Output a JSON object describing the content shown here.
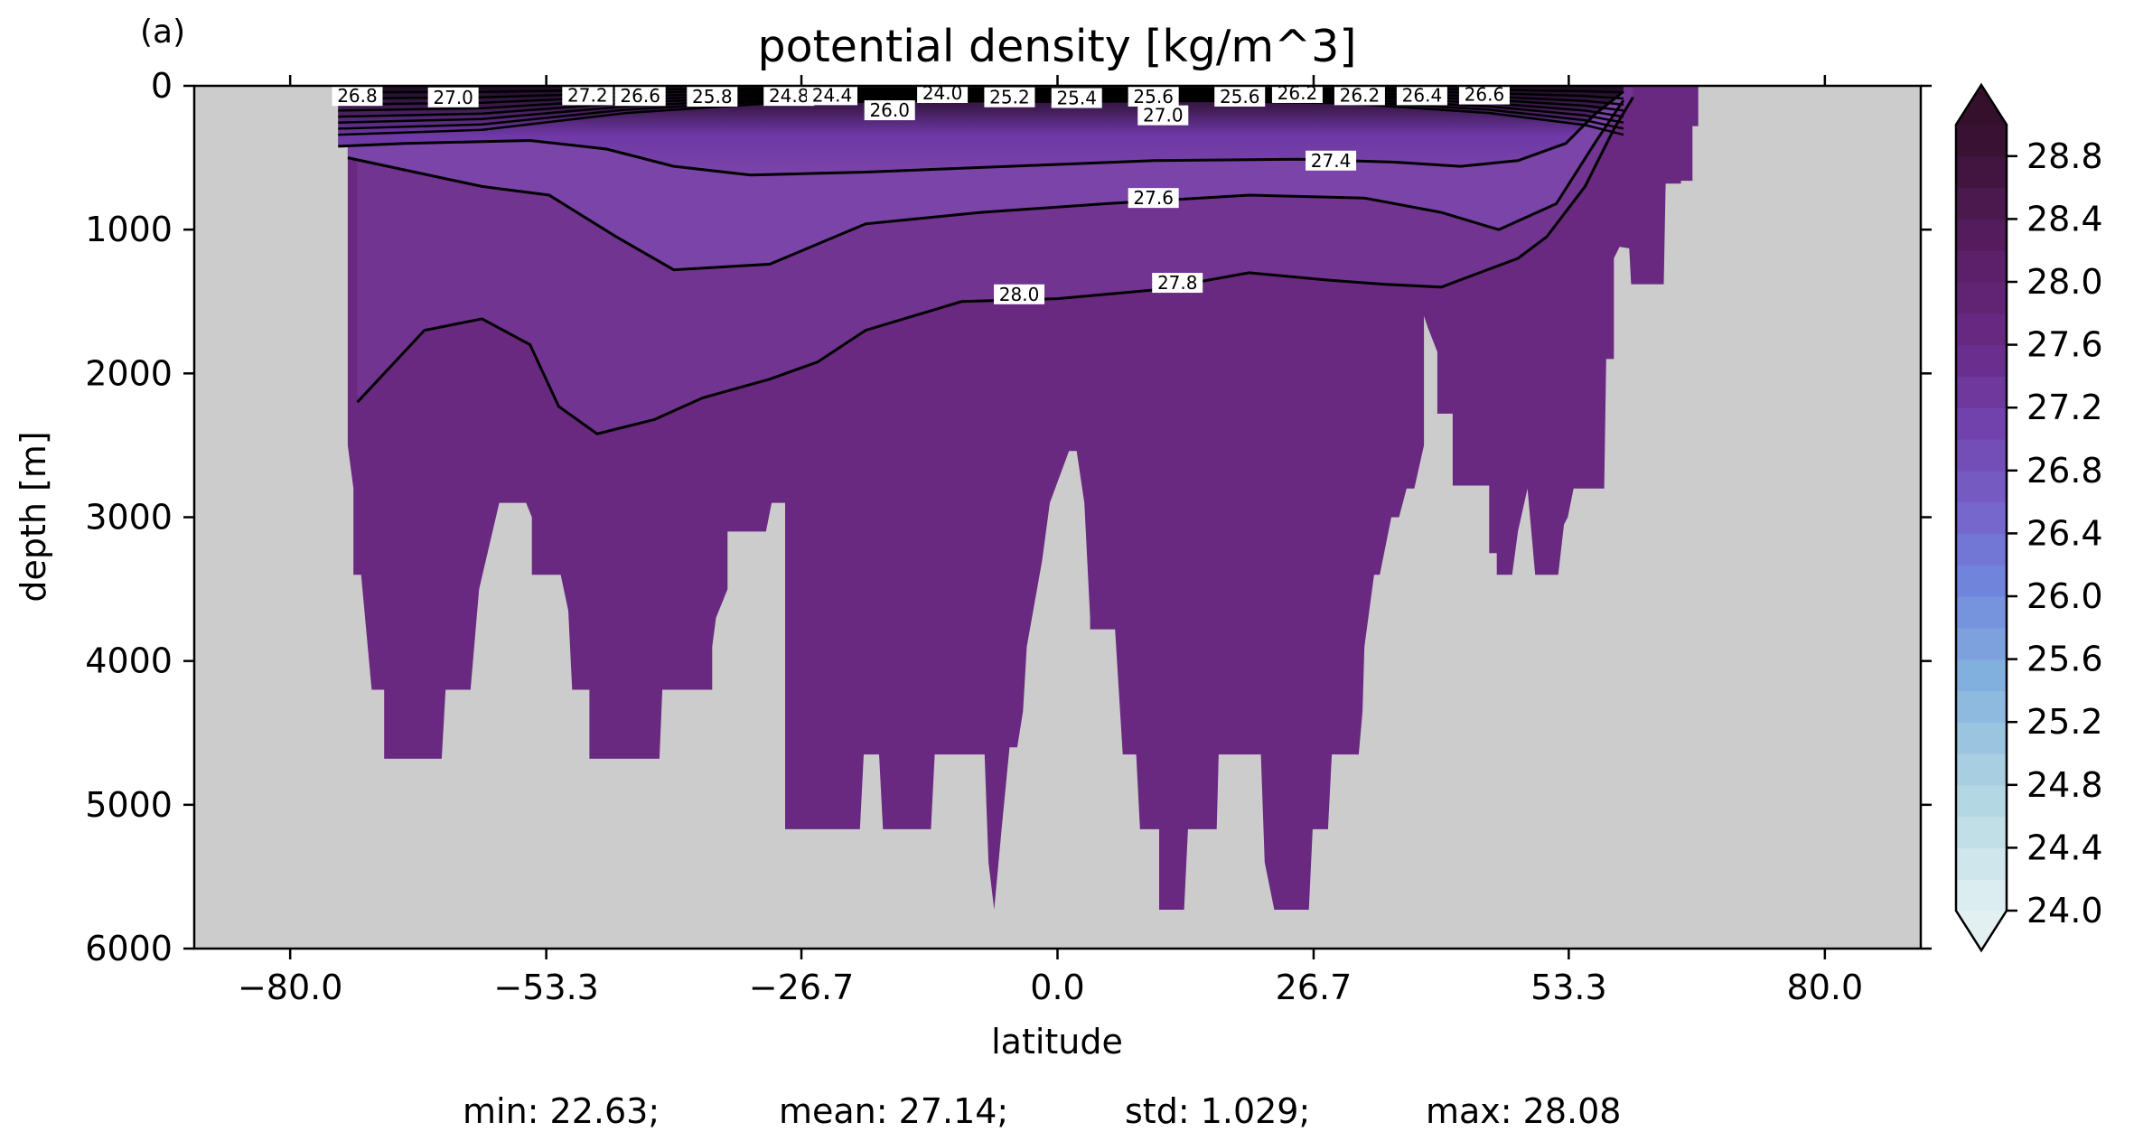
{
  "panel_label": "(a)",
  "stats": {
    "min": "min: 22.63;",
    "mean": "mean: 27.14;",
    "std": "std: 1.029;",
    "max": "max: 28.08"
  },
  "colors": {
    "land": "#cccccc",
    "deep_water": "#6a2980",
    "mid_water": "#713490",
    "upper_water": "#7a44a8",
    "surface_light": "#ddc8ee",
    "contour_line": "#000000"
  },
  "chart_data": {
    "type": "contour",
    "title": "potential density [kg/m^3]",
    "xlabel": "latitude",
    "ylabel": "depth [m]",
    "xlim": [
      -90,
      90
    ],
    "ylim": [
      6000,
      0
    ],
    "x_ticks": [
      -80,
      -53.3,
      -26.7,
      0,
      26.7,
      53.3,
      80
    ],
    "x_tick_labels": [
      "−80.0",
      "−53.3",
      "−26.7",
      "0.0",
      "26.7",
      "53.3",
      "80.0"
    ],
    "y_ticks": [
      0,
      1000,
      2000,
      3000,
      4000,
      5000,
      6000
    ],
    "y_tick_labels": [
      "0",
      "1000",
      "2000",
      "3000",
      "4000",
      "5000",
      "6000"
    ],
    "colorbar": {
      "min": 24.0,
      "max": 29.0,
      "step": 0.2,
      "extend": "both",
      "ticks": [
        24.0,
        24.4,
        24.8,
        25.2,
        25.6,
        26.0,
        26.4,
        26.8,
        27.2,
        27.6,
        28.0,
        28.4,
        28.8
      ],
      "tick_labels": [
        "24.0",
        "24.4",
        "24.8",
        "25.2",
        "25.6",
        "26.0",
        "26.4",
        "26.8",
        "27.2",
        "27.6",
        "28.0",
        "28.4",
        "28.8"
      ]
    },
    "contour_labels": [
      {
        "text": "26.8",
        "lat": -73.0,
        "depth": 20
      },
      {
        "text": "27.0",
        "lat": -63.0,
        "depth": 30
      },
      {
        "text": "27.2",
        "lat": -49.0,
        "depth": 15
      },
      {
        "text": "26.6",
        "lat": -43.5,
        "depth": 20
      },
      {
        "text": "25.8",
        "lat": -36.0,
        "depth": 25
      },
      {
        "text": "24.8",
        "lat": -28.0,
        "depth": 20
      },
      {
        "text": "24.4",
        "lat": -23.5,
        "depth": 15
      },
      {
        "text": "26.0",
        "lat": -17.5,
        "depth": 170
      },
      {
        "text": "24.0",
        "lat": -12.0,
        "depth": 0
      },
      {
        "text": "25.2",
        "lat": -5.0,
        "depth": 80
      },
      {
        "text": "25.4",
        "lat": 2.0,
        "depth": 85
      },
      {
        "text": "25.6",
        "lat": 10.0,
        "depth": 75
      },
      {
        "text": "27.0",
        "lat": 11.0,
        "depth": 205
      },
      {
        "text": "25.6",
        "lat": 19.0,
        "depth": 25
      },
      {
        "text": "26.2",
        "lat": 25.0,
        "depth": 50
      },
      {
        "text": "26.2",
        "lat": 31.5,
        "depth": 15
      },
      {
        "text": "26.4",
        "lat": 38.0,
        "depth": 15
      },
      {
        "text": "26.6",
        "lat": 44.5,
        "depth": 10
      },
      {
        "text": "27.4",
        "lat": 28.5,
        "depth": 520
      },
      {
        "text": "27.6",
        "lat": 10.0,
        "depth": 780
      },
      {
        "text": "27.8",
        "lat": 12.5,
        "depth": 1370
      },
      {
        "text": "28.0",
        "lat": -4.0,
        "depth": 1450
      }
    ],
    "contour_lines": [
      {
        "level": 27.4,
        "lat": [
          -75,
          -68,
          -55,
          -47,
          -40,
          -32,
          -20,
          -5,
          10,
          25,
          35,
          42,
          48,
          53,
          56,
          59
        ],
        "depth": [
          420,
          400,
          380,
          440,
          560,
          620,
          600,
          560,
          520,
          510,
          530,
          560,
          520,
          400,
          200,
          40
        ]
      },
      {
        "level": 27.6,
        "lat": [
          -74,
          -60,
          -53,
          -46,
          -40,
          -30,
          -20,
          -8,
          5,
          20,
          32,
          40,
          46,
          52,
          56,
          59
        ],
        "depth": [
          500,
          700,
          760,
          1050,
          1280,
          1240,
          960,
          880,
          820,
          760,
          780,
          880,
          1000,
          820,
          400,
          100
        ]
      },
      {
        "level": 27.8,
        "lat": [
          -73,
          -66,
          -60,
          -55,
          -52,
          -48,
          -42,
          -37,
          -30,
          -25,
          -20,
          -10,
          0,
          10,
          20,
          28,
          34,
          40,
          44,
          48,
          51,
          55,
          58,
          60
        ],
        "depth": [
          2200,
          1700,
          1620,
          1800,
          2230,
          2420,
          2320,
          2170,
          2040,
          1920,
          1700,
          1500,
          1480,
          1420,
          1300,
          1350,
          1380,
          1400,
          1300,
          1200,
          1050,
          700,
          300,
          80
        ]
      }
    ],
    "series": []
  }
}
